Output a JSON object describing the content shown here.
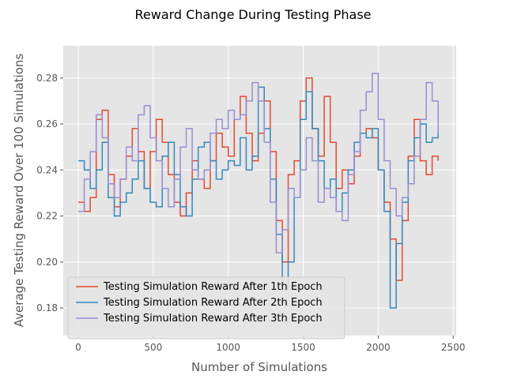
{
  "chart_data": {
    "type": "line",
    "title": "Reward Change During Testing Phase",
    "xlabel": "Number of Simulations",
    "ylabel": "Average Testing Reward Over 100 Simulations",
    "xlim": [
      -100,
      2520
    ],
    "ylim": [
      0.168,
      0.294
    ],
    "x_ticks": [
      0,
      500,
      1000,
      1500,
      2000,
      2500
    ],
    "y_ticks": [
      0.18,
      0.2,
      0.22,
      0.24,
      0.26,
      0.28
    ],
    "x_tick_labels": [
      "0",
      "500",
      "1000",
      "1500",
      "2000",
      "2500"
    ],
    "y_tick_labels": [
      "0.18",
      "0.20",
      "0.22",
      "0.24",
      "0.26",
      "0.28"
    ],
    "grid": true,
    "legend_position": "lower-left",
    "series": [
      {
        "name": "Testing Simulation Reward After 1th Epoch",
        "color": "#E24A33",
        "x": [
          0,
          40,
          80,
          120,
          160,
          200,
          240,
          280,
          320,
          360,
          400,
          440,
          480,
          520,
          560,
          600,
          640,
          680,
          720,
          760,
          800,
          840,
          880,
          920,
          960,
          1000,
          1040,
          1080,
          1120,
          1160,
          1200,
          1240,
          1280,
          1320,
          1360,
          1400,
          1440,
          1480,
          1520,
          1560,
          1600,
          1640,
          1680,
          1720,
          1760,
          1800,
          1840,
          1880,
          1920,
          1960,
          2000,
          2040,
          2080,
          2120,
          2160,
          2200,
          2240,
          2280,
          2320,
          2360,
          2400
        ],
        "values": [
          0.226,
          0.222,
          0.228,
          0.262,
          0.266,
          0.238,
          0.224,
          0.236,
          0.246,
          0.258,
          0.248,
          0.232,
          0.248,
          0.262,
          0.252,
          0.238,
          0.226,
          0.22,
          0.23,
          0.244,
          0.236,
          0.232,
          0.244,
          0.256,
          0.25,
          0.246,
          0.262,
          0.272,
          0.256,
          0.244,
          0.256,
          0.27,
          0.248,
          0.218,
          0.2,
          0.238,
          0.244,
          0.27,
          0.28,
          0.258,
          0.246,
          0.272,
          0.252,
          0.232,
          0.24,
          0.234,
          0.246,
          0.256,
          0.258,
          0.254,
          0.24,
          0.226,
          0.21,
          0.192,
          0.218,
          0.246,
          0.262,
          0.244,
          0.238,
          0.246,
          0.244
        ]
      },
      {
        "name": "Testing Simulation Reward After 2th Epoch",
        "color": "#348ABD",
        "x": [
          0,
          40,
          80,
          120,
          160,
          200,
          240,
          280,
          320,
          360,
          400,
          440,
          480,
          520,
          560,
          600,
          640,
          680,
          720,
          760,
          800,
          840,
          880,
          920,
          960,
          1000,
          1040,
          1080,
          1120,
          1160,
          1200,
          1240,
          1280,
          1320,
          1360,
          1400,
          1440,
          1480,
          1520,
          1560,
          1600,
          1640,
          1680,
          1720,
          1760,
          1800,
          1840,
          1880,
          1920,
          1960,
          2000,
          2040,
          2080,
          2120,
          2160,
          2200,
          2240,
          2280,
          2320,
          2360,
          2400
        ],
        "values": [
          0.244,
          0.24,
          0.232,
          0.24,
          0.252,
          0.228,
          0.22,
          0.226,
          0.23,
          0.236,
          0.244,
          0.232,
          0.226,
          0.224,
          0.246,
          0.252,
          0.238,
          0.224,
          0.22,
          0.236,
          0.25,
          0.252,
          0.244,
          0.236,
          0.24,
          0.244,
          0.242,
          0.254,
          0.24,
          0.246,
          0.276,
          0.258,
          0.236,
          0.212,
          0.188,
          0.2,
          0.228,
          0.262,
          0.274,
          0.258,
          0.244,
          0.232,
          0.236,
          0.222,
          0.23,
          0.24,
          0.252,
          0.256,
          0.254,
          0.258,
          0.24,
          0.222,
          0.18,
          0.208,
          0.226,
          0.244,
          0.254,
          0.26,
          0.252,
          0.254,
          0.258
        ]
      },
      {
        "name": "Testing Simulation Reward After 3th Epoch",
        "color": "#988ED5",
        "x": [
          0,
          40,
          80,
          120,
          160,
          200,
          240,
          280,
          320,
          360,
          400,
          440,
          480,
          520,
          560,
          600,
          640,
          680,
          720,
          760,
          800,
          840,
          880,
          920,
          960,
          1000,
          1040,
          1080,
          1120,
          1160,
          1200,
          1240,
          1280,
          1320,
          1360,
          1400,
          1440,
          1480,
          1520,
          1560,
          1600,
          1640,
          1680,
          1720,
          1760,
          1800,
          1840,
          1880,
          1920,
          1960,
          2000,
          2040,
          2080,
          2120,
          2160,
          2200,
          2240,
          2280,
          2320,
          2360,
          2400
        ],
        "values": [
          0.222,
          0.236,
          0.248,
          0.264,
          0.254,
          0.234,
          0.228,
          0.236,
          0.25,
          0.244,
          0.264,
          0.268,
          0.254,
          0.244,
          0.232,
          0.224,
          0.236,
          0.25,
          0.258,
          0.24,
          0.236,
          0.24,
          0.256,
          0.262,
          0.258,
          0.266,
          0.262,
          0.264,
          0.27,
          0.278,
          0.27,
          0.252,
          0.226,
          0.204,
          0.214,
          0.232,
          0.228,
          0.24,
          0.254,
          0.244,
          0.226,
          0.232,
          0.228,
          0.222,
          0.218,
          0.238,
          0.248,
          0.266,
          0.274,
          0.282,
          0.262,
          0.244,
          0.232,
          0.22,
          0.228,
          0.234,
          0.246,
          0.262,
          0.278,
          0.27,
          0.256
        ]
      }
    ]
  }
}
